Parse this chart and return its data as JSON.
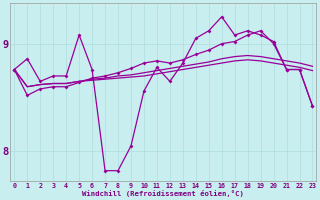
{
  "xlabel": "Windchill (Refroidissement éolien,°C)",
  "background_color": "#c8eef0",
  "line_color": "#990099",
  "grid_color": "#b0dde0",
  "x_ticks": [
    0,
    1,
    2,
    3,
    4,
    5,
    6,
    7,
    8,
    9,
    10,
    11,
    12,
    13,
    14,
    15,
    16,
    17,
    18,
    19,
    20,
    21,
    22,
    23
  ],
  "y_ticks": [
    8,
    9
  ],
  "ylim": [
    7.72,
    9.38
  ],
  "xlim": [
    -0.3,
    23.3
  ],
  "series1_markers": [
    8.76,
    8.86,
    8.65,
    8.7,
    8.7,
    9.08,
    8.76,
    7.82,
    7.82,
    8.05,
    8.56,
    8.78,
    8.65,
    8.82,
    9.05,
    9.12,
    9.25,
    9.08,
    9.12,
    9.08,
    9.02,
    8.76,
    8.76,
    8.42
  ],
  "series2_smooth": [
    8.76,
    8.6,
    8.62,
    8.63,
    8.63,
    8.65,
    8.66,
    8.67,
    8.68,
    8.69,
    8.7,
    8.72,
    8.74,
    8.76,
    8.78,
    8.8,
    8.82,
    8.84,
    8.85,
    8.84,
    8.82,
    8.8,
    8.78,
    8.75
  ],
  "series3_smooth": [
    8.76,
    8.6,
    8.62,
    8.63,
    8.63,
    8.65,
    8.67,
    8.68,
    8.7,
    8.71,
    8.73,
    8.75,
    8.77,
    8.79,
    8.81,
    8.83,
    8.86,
    8.88,
    8.89,
    8.88,
    8.86,
    8.84,
    8.82,
    8.79
  ],
  "series4_markers": [
    8.76,
    8.52,
    8.58,
    8.6,
    8.6,
    8.64,
    8.68,
    8.7,
    8.73,
    8.77,
    8.82,
    8.84,
    8.82,
    8.85,
    8.9,
    8.94,
    9.0,
    9.02,
    9.08,
    9.12,
    9.0,
    8.76,
    8.76,
    8.42
  ]
}
